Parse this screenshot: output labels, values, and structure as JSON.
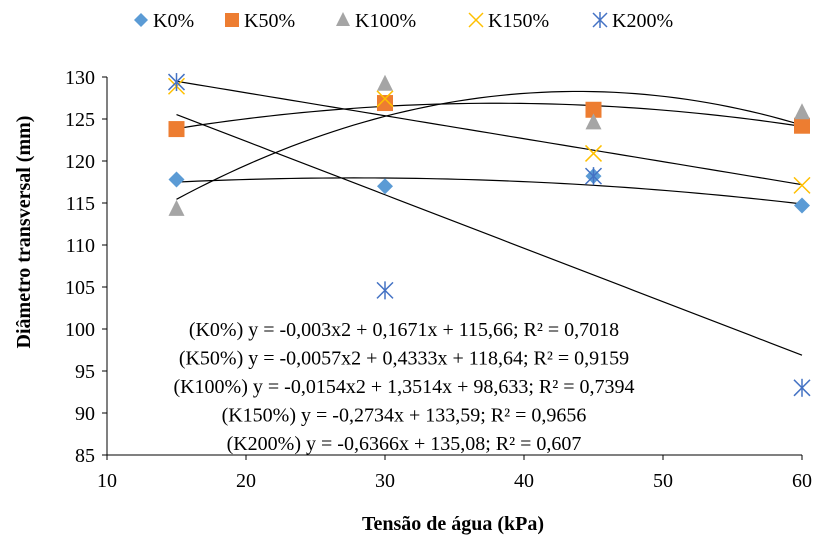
{
  "chart_data": {
    "type": "scatter",
    "title": "",
    "xlabel": "Tensão de água (kPa)",
    "ylabel": "Diâmetro transversal (mm)",
    "xlim": [
      10,
      60
    ],
    "ylim": [
      85,
      130
    ],
    "x_ticks": [
      10,
      20,
      30,
      40,
      50,
      60
    ],
    "y_ticks": [
      85,
      90,
      95,
      100,
      105,
      110,
      115,
      120,
      125,
      130
    ],
    "grid": false,
    "legend_position": "top",
    "x": [
      15,
      30,
      45,
      60
    ],
    "series": [
      {
        "name": "K0%",
        "marker": "diamond",
        "color": "#5B9BD5",
        "values": [
          117.8,
          117.0,
          118.2,
          114.7
        ]
      },
      {
        "name": "K50%",
        "marker": "square",
        "color": "#ED7D31",
        "values": [
          123.8,
          126.9,
          126.1,
          124.2
        ]
      },
      {
        "name": "K100%",
        "marker": "triangle",
        "color": "#A5A5A5",
        "values": [
          114.3,
          129.2,
          124.6,
          125.8
        ]
      },
      {
        "name": "K150%",
        "marker": "x",
        "color": "#FFC000",
        "values": [
          128.9,
          127.4,
          120.9,
          117.1
        ]
      },
      {
        "name": "K200%",
        "marker": "star",
        "color": "#4472C4",
        "values": [
          129.4,
          104.6,
          118.2,
          93.0
        ]
      }
    ],
    "trendlines": [
      {
        "series": "K0%",
        "kind": "polynomial",
        "coefficients": [
          -0.003,
          0.1671,
          115.66
        ],
        "r2": 0.7018
      },
      {
        "series": "K50%",
        "kind": "polynomial",
        "coefficients": [
          -0.0057,
          0.4333,
          118.64
        ],
        "r2": 0.9159
      },
      {
        "series": "K100%",
        "kind": "polynomial",
        "coefficients": [
          -0.0154,
          1.3514,
          98.633
        ],
        "r2": 0.7394
      },
      {
        "series": "K150%",
        "kind": "linear",
        "coefficients": [
          -0.2734,
          133.59
        ],
        "r2": 0.9656
      },
      {
        "series": "K200%",
        "kind": "linear",
        "coefficients": [
          -0.6366,
          135.08
        ],
        "r2": 0.607
      }
    ],
    "annotations": [
      "(K0%) y = -0,003x2 + 0,1671x + 115,66; R² = 0,7018",
      "(K50%) y = -0,0057x2 + 0,4333x + 118,64; R² = 0,9159",
      "(K100%) y = -0,0154x2 + 1,3514x + 98,633; R² = 0,7394",
      "(K150%) y = -0,2734x + 133,59; R² = 0,9656",
      "(K200%) y = -0,6366x + 135,08; R² = 0,607"
    ]
  }
}
